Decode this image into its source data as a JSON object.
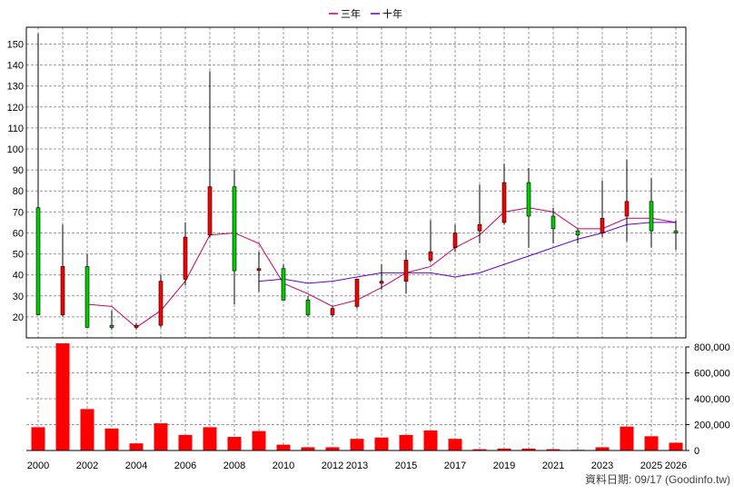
{
  "legend": [
    {
      "label": "三年",
      "color": "#cc0066"
    },
    {
      "label": "十年",
      "color": "#6600cc"
    }
  ],
  "source": "資料日期: 09/17 (Goodinfo.tw)",
  "colors": {
    "up_candle": "#ff0000",
    "down_candle": "#00cc00",
    "volume": "#ff0000",
    "grid": "#999999",
    "border": "#000000"
  },
  "chart_data": {
    "type": "candlestick",
    "x_tick_labels": [
      "2000",
      "2002",
      "2004",
      "2006",
      "2008",
      "2010",
      "2012",
      "2013",
      "2015",
      "2017",
      "2019",
      "2021",
      "2023",
      "2025",
      "2026"
    ],
    "price_axis": {
      "ylim": [
        10,
        158
      ],
      "ticks": [
        20,
        30,
        40,
        50,
        60,
        70,
        80,
        90,
        100,
        110,
        120,
        130,
        140,
        150
      ]
    },
    "volume_axis": {
      "ylim": [
        0,
        800000
      ],
      "ticks": [
        0,
        200000,
        400000,
        600000,
        800000
      ],
      "tick_labels": [
        "0",
        "200,000",
        "400,000",
        "600,000",
        "800,000"
      ]
    },
    "years": [
      2000,
      2001,
      2002,
      2003,
      2004,
      2005,
      2006,
      2007,
      2008,
      2009,
      2010,
      2011,
      2012,
      2013,
      2014,
      2015,
      2016,
      2017,
      2018,
      2019,
      2020,
      2021,
      2022,
      2023,
      2024,
      2025,
      2026
    ],
    "candles": [
      {
        "year": 2000,
        "open": 72,
        "close": 21,
        "high": 155,
        "low": 21
      },
      {
        "year": 2001,
        "open": 21,
        "close": 44,
        "high": 64,
        "low": 20
      },
      {
        "year": 2002,
        "open": 44,
        "close": 15,
        "high": 50,
        "low": 15
      },
      {
        "year": 2003,
        "open": 16,
        "close": 15,
        "high": 23,
        "low": 14
      },
      {
        "year": 2004,
        "open": 15,
        "close": 16,
        "high": 17,
        "low": 14
      },
      {
        "year": 2005,
        "open": 16,
        "close": 37,
        "high": 40,
        "low": 15
      },
      {
        "year": 2006,
        "open": 38,
        "close": 58,
        "high": 65,
        "low": 35
      },
      {
        "year": 2007,
        "open": 59,
        "close": 82,
        "high": 137,
        "low": 58
      },
      {
        "year": 2008,
        "open": 82,
        "close": 42,
        "high": 90,
        "low": 26
      },
      {
        "year": 2009,
        "open": 43,
        "close": 43,
        "high": 51,
        "low": 32
      },
      {
        "year": 2010,
        "open": 43,
        "close": 28,
        "high": 45,
        "low": 28
      },
      {
        "year": 2011,
        "open": 28,
        "close": 21,
        "high": 30,
        "low": 20
      },
      {
        "year": 2012,
        "open": 21,
        "close": 24,
        "high": 25,
        "low": 20
      },
      {
        "year": 2013,
        "open": 25,
        "close": 38,
        "high": 38,
        "low": 24
      },
      {
        "year": 2014,
        "open": 36,
        "close": 37,
        "high": 45,
        "low": 33
      },
      {
        "year": 2015,
        "open": 37,
        "close": 47,
        "high": 52,
        "low": 31
      },
      {
        "year": 2016,
        "open": 47,
        "close": 51,
        "high": 66,
        "low": 46
      },
      {
        "year": 2017,
        "open": 53,
        "close": 60,
        "high": 64,
        "low": 51
      },
      {
        "year": 2018,
        "open": 61,
        "close": 64,
        "high": 83,
        "low": 55
      },
      {
        "year": 2019,
        "open": 65,
        "close": 84,
        "high": 93,
        "low": 64
      },
      {
        "year": 2020,
        "open": 84,
        "close": 68,
        "high": 91,
        "low": 53
      },
      {
        "year": 2021,
        "open": 68,
        "close": 62,
        "high": 72,
        "low": 55
      },
      {
        "year": 2022,
        "open": 61,
        "close": 59,
        "high": 62,
        "low": 55
      },
      {
        "year": 2023,
        "open": 60,
        "close": 67,
        "high": 85,
        "low": 58
      },
      {
        "year": 2024,
        "open": 68,
        "close": 75,
        "high": 95,
        "low": 56
      },
      {
        "year": 2025,
        "open": 75,
        "close": 61,
        "high": 86,
        "low": 53
      },
      {
        "year": 2026,
        "open": 61,
        "close": 60,
        "high": 66,
        "low": 52
      }
    ],
    "series": [
      {
        "name": "三年",
        "x": [
          2002,
          2003,
          2004,
          2005,
          2006,
          2007,
          2008,
          2009,
          2010,
          2011,
          2012,
          2013,
          2014,
          2015,
          2016,
          2017,
          2018,
          2019,
          2020,
          2021,
          2022,
          2023,
          2024,
          2025,
          2026
        ],
        "values": [
          26,
          25,
          15,
          23,
          37,
          59,
          60,
          55,
          36,
          31,
          25,
          28,
          34,
          41,
          44,
          53,
          59,
          70,
          72,
          70,
          62,
          62,
          67,
          67,
          65
        ]
      },
      {
        "name": "十年",
        "x": [
          2009,
          2010,
          2011,
          2012,
          2013,
          2014,
          2015,
          2016,
          2017,
          2018,
          2019,
          2020,
          2021,
          2022,
          2023,
          2024,
          2025,
          2026
        ],
        "values": [
          37,
          38,
          36,
          37,
          39,
          41,
          41,
          41,
          39,
          41,
          45,
          49,
          53,
          57,
          60,
          64,
          65,
          65
        ]
      }
    ],
    "volume": [
      {
        "year": 2000,
        "value": 180000
      },
      {
        "year": 2001,
        "value": 860000
      },
      {
        "year": 2002,
        "value": 320000
      },
      {
        "year": 2003,
        "value": 170000
      },
      {
        "year": 2004,
        "value": 55000
      },
      {
        "year": 2005,
        "value": 210000
      },
      {
        "year": 2006,
        "value": 120000
      },
      {
        "year": 2007,
        "value": 180000
      },
      {
        "year": 2008,
        "value": 105000
      },
      {
        "year": 2009,
        "value": 150000
      },
      {
        "year": 2010,
        "value": 45000
      },
      {
        "year": 2011,
        "value": 25000
      },
      {
        "year": 2012,
        "value": 25000
      },
      {
        "year": 2013,
        "value": 90000
      },
      {
        "year": 2014,
        "value": 100000
      },
      {
        "year": 2015,
        "value": 120000
      },
      {
        "year": 2016,
        "value": 155000
      },
      {
        "year": 2017,
        "value": 90000
      },
      {
        "year": 2018,
        "value": 10000
      },
      {
        "year": 2019,
        "value": 15000
      },
      {
        "year": 2020,
        "value": 15000
      },
      {
        "year": 2021,
        "value": 10000
      },
      {
        "year": 2022,
        "value": 5000
      },
      {
        "year": 2023,
        "value": 25000
      },
      {
        "year": 2024,
        "value": 185000
      },
      {
        "year": 2025,
        "value": 110000
      },
      {
        "year": 2026,
        "value": 60000
      }
    ]
  }
}
